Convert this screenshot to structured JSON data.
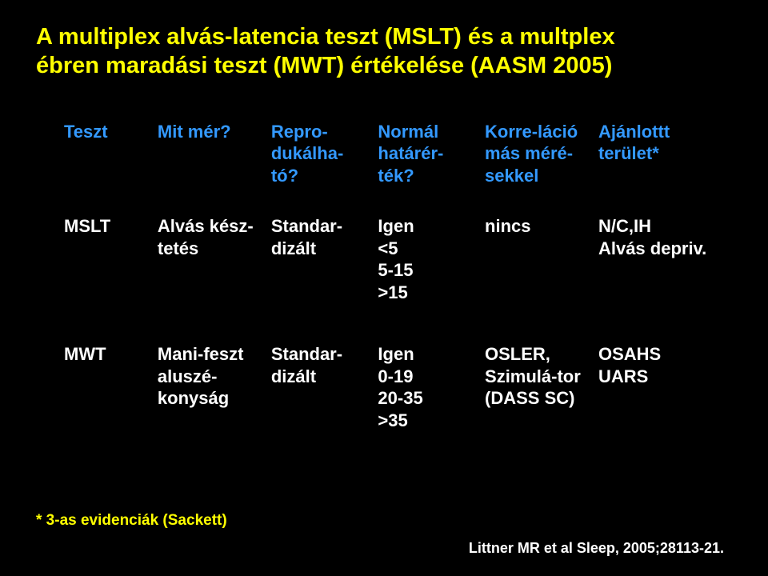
{
  "title_line1": "A multiplex alvás-latencia teszt (MSLT) és a multplex",
  "title_line2": "ébren maradási teszt (MWT) értékelése (AASM 2005)",
  "headers": {
    "teszt": "Teszt",
    "mit": "Mit mér?",
    "repro": "Repro-dukálha-tó?",
    "normal": "Normál határér-ték?",
    "korre": "Korre-láció más méré-sekkel",
    "ajanlott": "Ajánlottt terület*"
  },
  "row1": {
    "teszt": "MSLT",
    "mit": "Alvás kész-tetés",
    "repro": "Standar-dizált",
    "normal_l1": "Igen",
    "normal_l2": "<5",
    "normal_l3": "5-15",
    "normal_l4": ">15",
    "korre": "nincs",
    "ajanlott_l1": "N/C,IH",
    "ajanlott_l2": "Alvás depriv."
  },
  "row2": {
    "teszt": "MWT",
    "mit": "Mani-feszt aluszé-konyság",
    "repro": "Standar-dizált",
    "normal_l1": "Igen",
    "normal_l2": "0-19",
    "normal_l3": "20-35",
    "normal_l4": ">35",
    "korre_l1": "OSLER,",
    "korre_l2": "Szimulá-tor",
    "korre_l3": "(DASS SC)",
    "ajanlott_l1": "OSAHS",
    "ajanlott_l2": "UARS"
  },
  "footnote": "* 3-as evidenciák (Sackett)",
  "citation": "Littner MR et al Sleep, 2005;28113-21.",
  "colors": {
    "background": "#000000",
    "title": "#ffff00",
    "header_text": "#3399ff",
    "data_text": "#ffffff",
    "footnote": "#ffff00",
    "citation": "#ffffff"
  },
  "font_sizes": {
    "title": 29,
    "table": 22,
    "footnote": 19,
    "citation": 18
  }
}
